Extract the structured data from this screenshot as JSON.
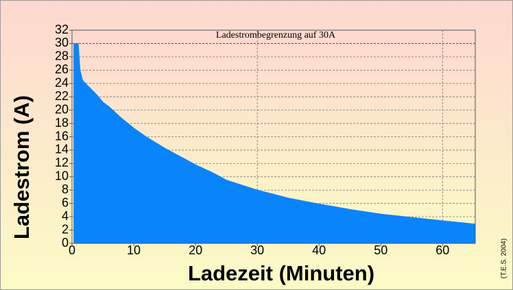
{
  "chart_data": {
    "type": "area",
    "annotation": "Ladestrombegrenzung auf 30A",
    "credit": "(T.E.S. 2004)",
    "x_label": "Ladezeit (Minuten)",
    "y_label": "Ladestrom (A)",
    "x": [
      0.3,
      1.0,
      1.3,
      1.7,
      2.5,
      4,
      5,
      6,
      8,
      10,
      12,
      15,
      18,
      20,
      23,
      25,
      28,
      30,
      33,
      35,
      40,
      42,
      45,
      50,
      55,
      60,
      65.3
    ],
    "y": [
      30,
      30,
      26,
      24.5,
      23.7,
      22.3,
      21.2,
      20.5,
      18.8,
      17.3,
      16,
      14.3,
      12.8,
      11.8,
      10.5,
      9.5,
      8.6,
      8.0,
      7.3,
      6.8,
      5.9,
      5.6,
      5.1,
      4.4,
      3.9,
      3.4,
      2.9
    ],
    "color": "#0a84fa",
    "limit_line": 30,
    "limit_color": "#e02020",
    "xlim": [
      0,
      65.3
    ],
    "ylim": [
      0,
      32
    ],
    "xticks": [
      0,
      10,
      20,
      30,
      40,
      50,
      60
    ],
    "yticks": [
      0,
      2,
      4,
      6,
      8,
      10,
      12,
      14,
      16,
      18,
      20,
      22,
      24,
      26,
      28,
      30,
      32
    ],
    "x_grid": [
      30,
      60
    ],
    "grid": true
  }
}
